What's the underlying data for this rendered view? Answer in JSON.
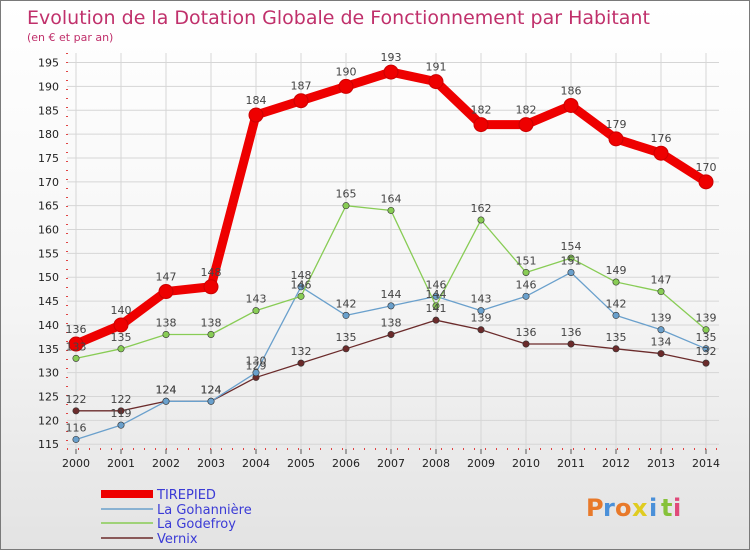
{
  "chart_data": {
    "type": "line",
    "title": "Evolution de la Dotation Globale de Fonctionnement par Habitant",
    "subtitle": "(en € et par an)",
    "x": [
      "2000",
      "2001",
      "2002",
      "2003",
      "2004",
      "2005",
      "2006",
      "2007",
      "2008",
      "2009",
      "2010",
      "2011",
      "2012",
      "2013",
      "2014"
    ],
    "ylim": [
      114,
      197
    ],
    "yticks": [
      115,
      120,
      125,
      130,
      135,
      140,
      145,
      150,
      155,
      160,
      165,
      170,
      175,
      180,
      185,
      190,
      195
    ],
    "series": [
      {
        "name": "TIREPIED",
        "color": "#ee0000",
        "values": [
          136,
          140,
          147,
          148,
          184,
          187,
          190,
          193,
          191,
          182,
          182,
          186,
          179,
          176,
          170
        ]
      },
      {
        "name": "La Gohannière",
        "color": "#6aa0cc",
        "values": [
          116,
          119,
          124,
          124,
          130,
          148,
          142,
          144,
          146,
          143,
          146,
          151,
          142,
          139,
          135
        ]
      },
      {
        "name": "La Godefroy",
        "color": "#88cc55",
        "values": [
          133,
          135,
          138,
          138,
          143,
          146,
          165,
          164,
          144,
          162,
          151,
          154,
          149,
          147,
          139
        ]
      },
      {
        "name": "Vernix",
        "color": "#6b2b2b",
        "values": [
          122,
          122,
          124,
          124,
          129,
          132,
          135,
          138,
          141,
          139,
          136,
          136,
          135,
          134,
          132
        ]
      }
    ],
    "legend_position": "bottom-left"
  },
  "brand": {
    "name": "Proxiti",
    "letters": [
      "P",
      "r",
      "o",
      "x",
      "i",
      "t",
      "i"
    ]
  }
}
